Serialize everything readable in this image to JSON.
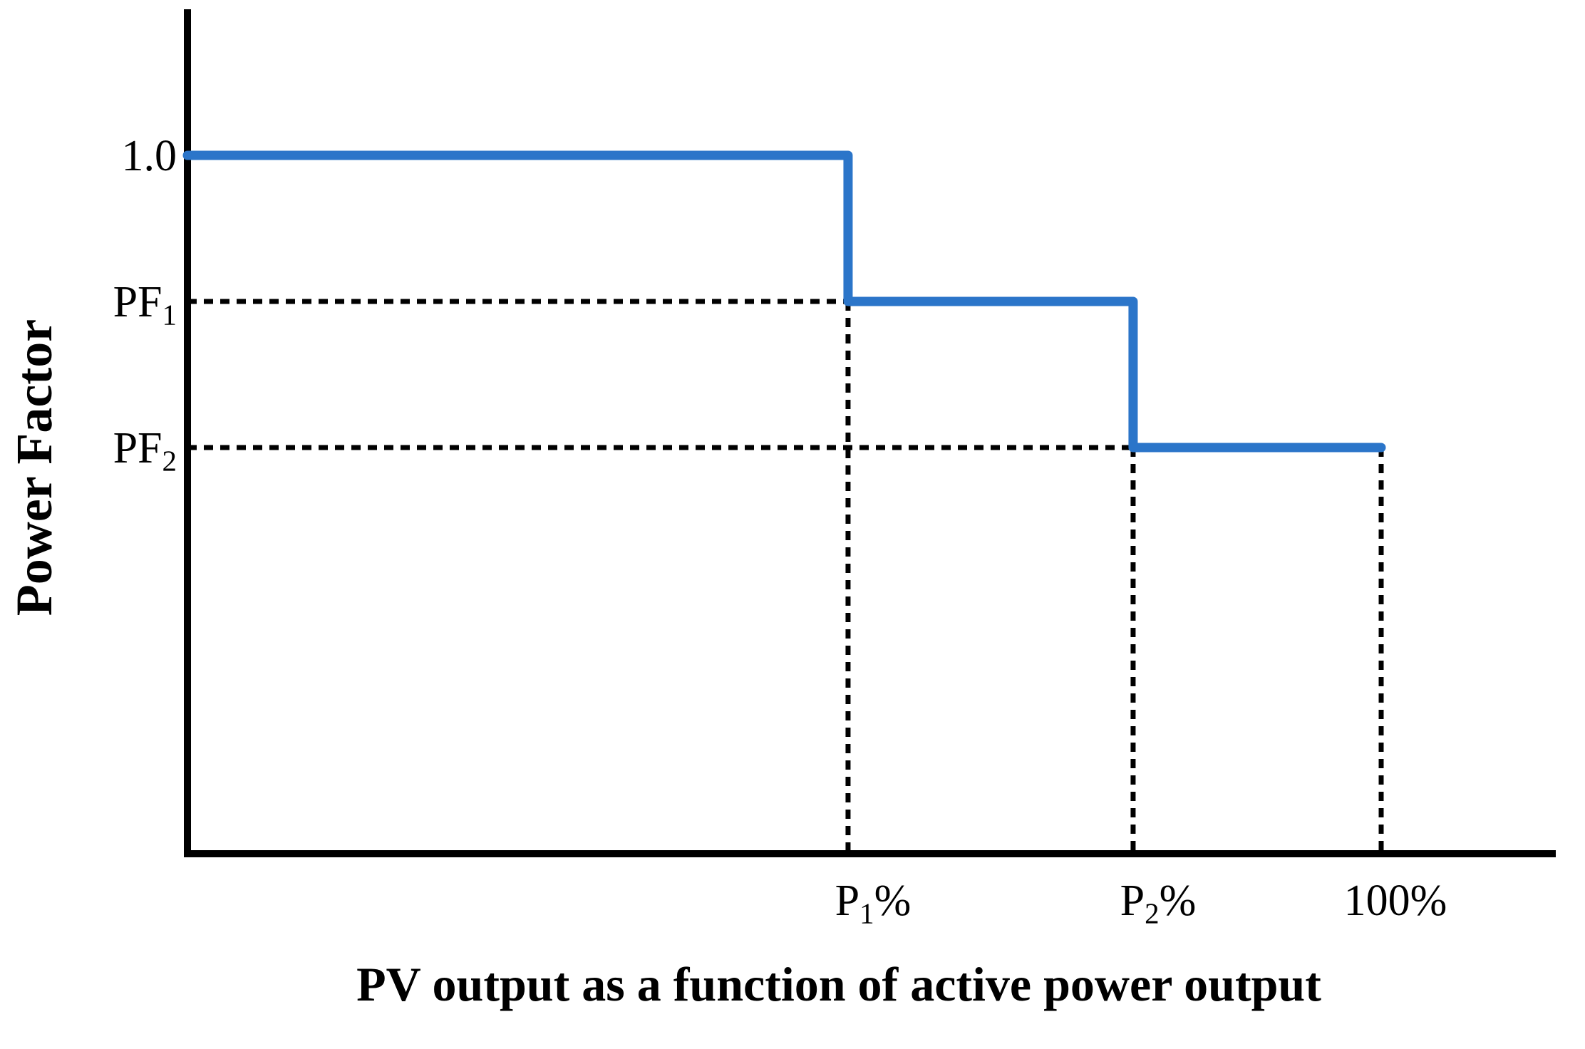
{
  "figure": {
    "background": "#ffffff"
  },
  "colors": {
    "series_line": "#2B75C9",
    "axis": "#000000",
    "guide": "#000000",
    "text": "#000000"
  },
  "chart_data": {
    "type": "line",
    "subtype": "step",
    "title": "",
    "xlabel": "PV output as a function of active power output",
    "ylabel": "Power Factor",
    "legend": "none",
    "grid": false,
    "axes": {
      "x_unit": "percent of rated active power output",
      "x_range_frac": [
        0,
        1.146
      ],
      "y_range": "power factor, unlabeled scale with reference levels 1.0, PF1, PF2"
    },
    "x_ticks": [
      {
        "pre": "P",
        "sub": "1",
        "post": "%",
        "x_frac": 0.5534
      },
      {
        "pre": "P",
        "sub": "2",
        "post": "%",
        "x_frac": 0.7922
      },
      {
        "pre": "100%",
        "sub": "",
        "post": "",
        "x_frac": 1.0
      }
    ],
    "y_ticks": [
      {
        "pre": "1.0",
        "sub": "",
        "post": "",
        "y_frac": 0.827,
        "value": "1.0"
      },
      {
        "pre": "PF",
        "sub": "1",
        "post": "",
        "y_frac": 0.654,
        "value": "PF1"
      },
      {
        "pre": "PF",
        "sub": "2",
        "post": "",
        "y_frac": 0.481,
        "value": "PF2"
      }
    ],
    "series": [
      {
        "name": "power-factor-step-curve",
        "color": "#2B75C9",
        "points_symbolic": [
          [
            "0%",
            "1.0"
          ],
          [
            "P1%",
            "1.0"
          ],
          [
            "P1%",
            "PF1"
          ],
          [
            "P2%",
            "PF1"
          ],
          [
            "P2%",
            "PF2"
          ],
          [
            "100%",
            "PF2"
          ]
        ],
        "points_norm": [
          [
            0.0,
            0.827
          ],
          [
            0.5534,
            0.827
          ],
          [
            0.5534,
            0.654
          ],
          [
            0.7922,
            0.654
          ],
          [
            0.7922,
            0.481
          ],
          [
            1.0,
            0.481
          ]
        ]
      }
    ],
    "guides": {
      "horizontal": [
        {
          "y_frac": 0.654,
          "x_from": 0.0,
          "x_to": 0.5534
        },
        {
          "y_frac": 0.481,
          "x_from": 0.0,
          "x_to": 0.7922
        }
      ],
      "vertical": [
        {
          "x_frac": 0.5534,
          "y_from": 0.654
        },
        {
          "x_frac": 0.7922,
          "y_from": 0.481
        },
        {
          "x_frac": 1.0,
          "y_from": 0.481
        }
      ]
    }
  }
}
